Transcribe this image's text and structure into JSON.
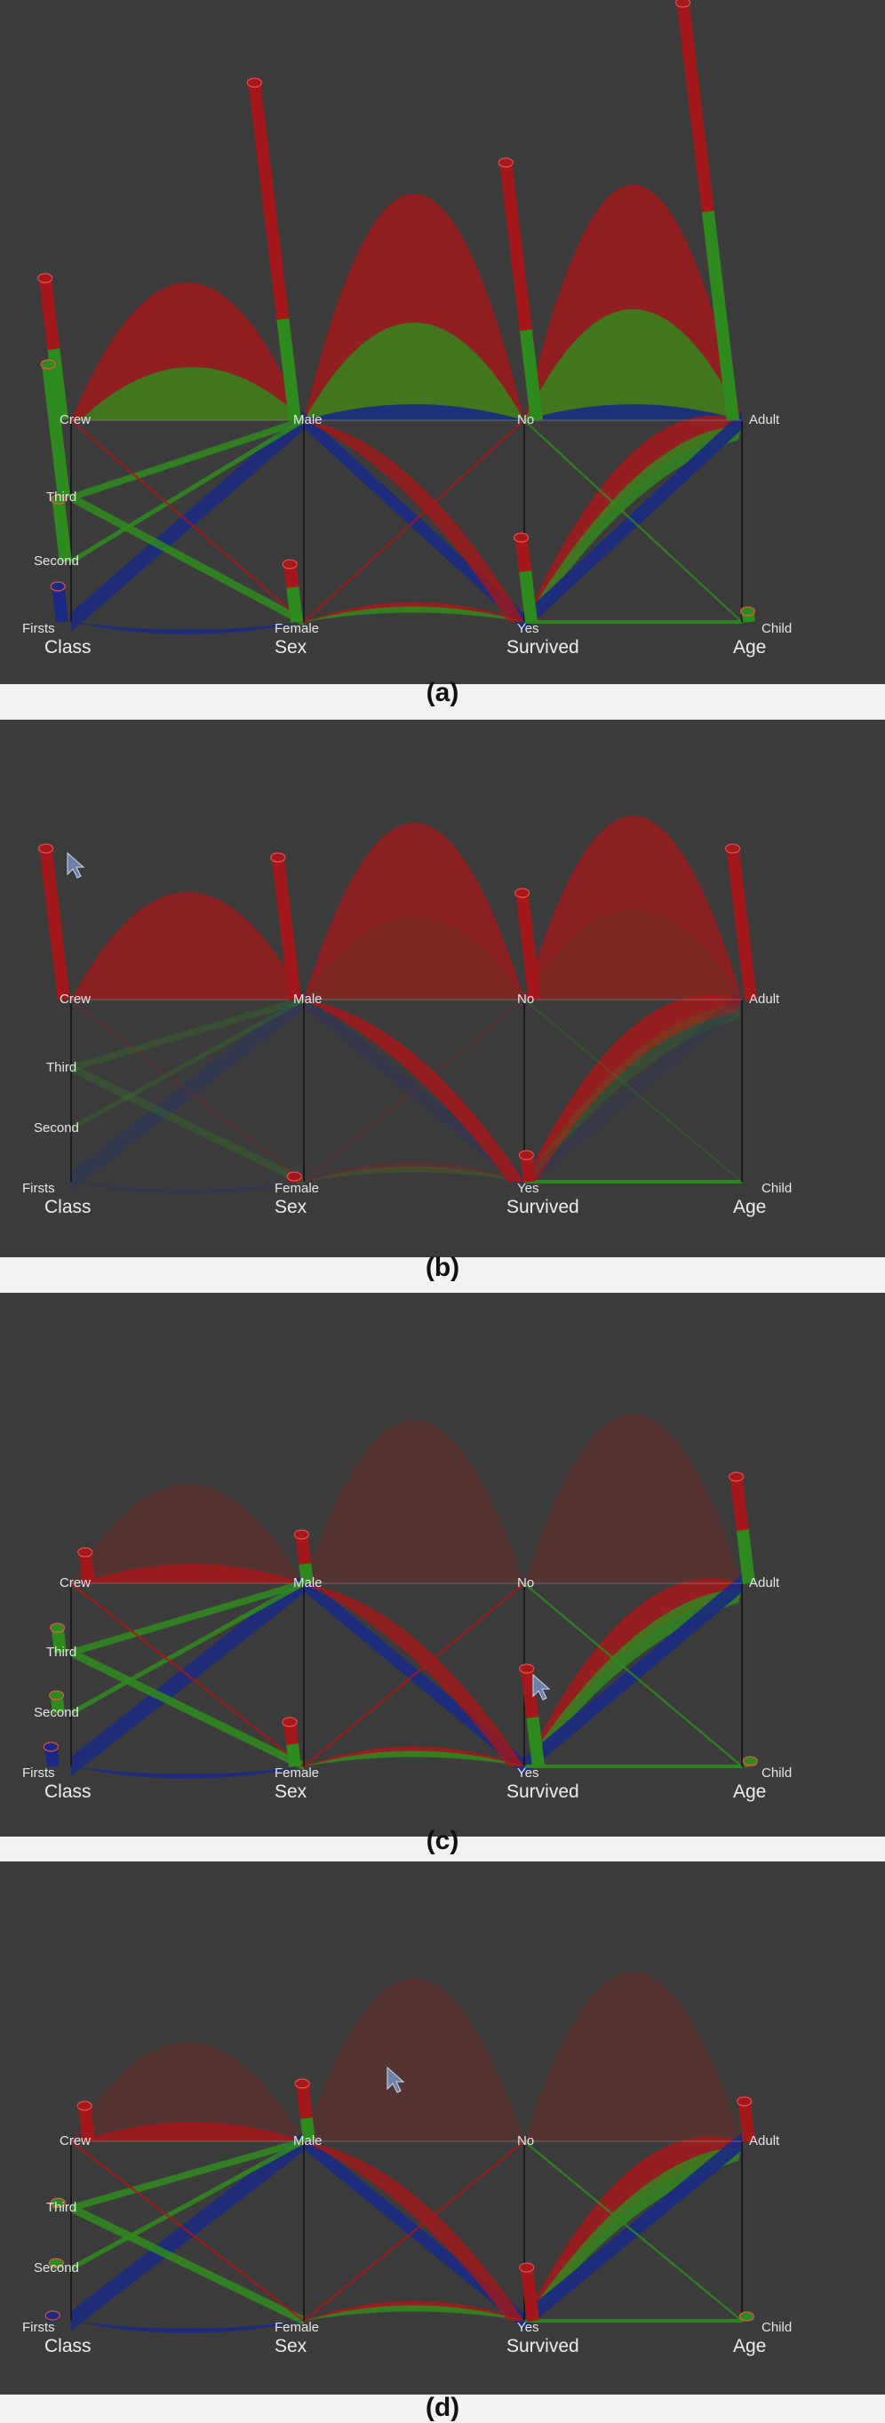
{
  "panels": [
    {
      "caption": "(a)"
    },
    {
      "caption": "(b)"
    },
    {
      "caption": "(c)"
    },
    {
      "caption": "(d)"
    }
  ],
  "axes": [
    {
      "title": "Class",
      "categories": [
        "Firsts",
        "Second",
        "Third",
        "Crew"
      ]
    },
    {
      "title": "Sex",
      "categories": [
        "Female",
        "Male"
      ]
    },
    {
      "title": "Survived",
      "categories": [
        "Yes",
        "No"
      ]
    },
    {
      "title": "Age",
      "categories": [
        "Child",
        "Adult"
      ]
    }
  ],
  "colors": {
    "panel_bg": "#3c3c3c",
    "red": "#a3191b",
    "green": "#2f8a1e",
    "blue": "#1a2a82",
    "axis_line": "#101010"
  }
}
